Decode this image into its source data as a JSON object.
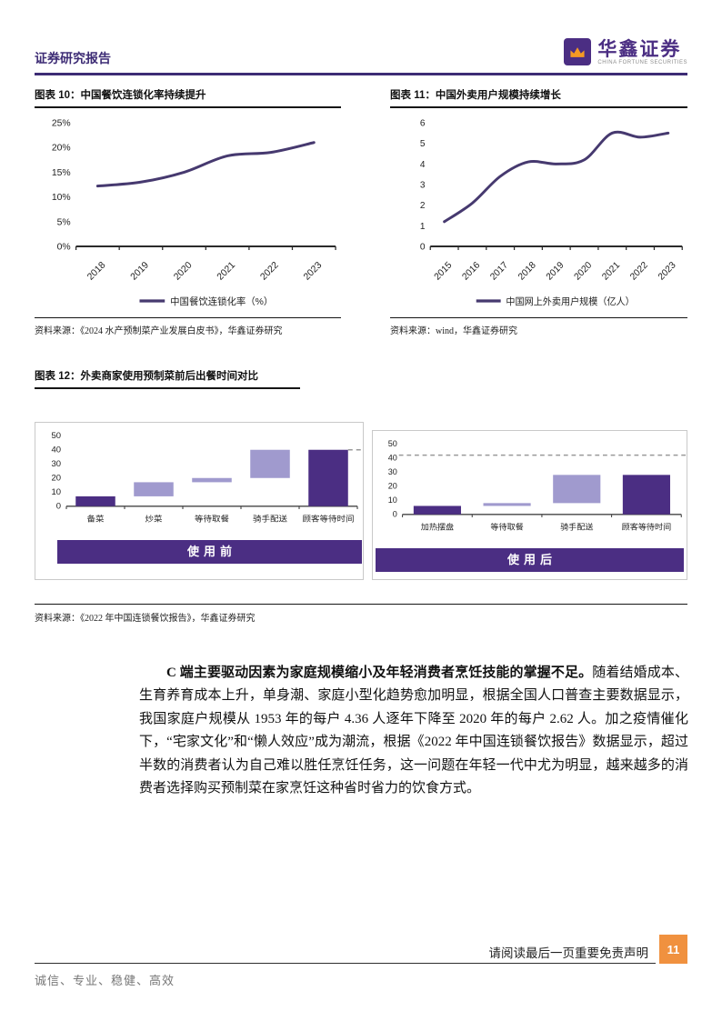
{
  "header": {
    "report_type": "证券研究报告",
    "brand": "华鑫证券",
    "brand_en": "CHINA FORTUNE SECURITIES"
  },
  "colors": {
    "primary_purple": "#4b2e83",
    "light_purple": "#a09ace",
    "line_purple": "#46396f",
    "header_purple": "#3d2c75",
    "accent_orange": "#f0913f",
    "dash_gray": "#9a9a9a"
  },
  "chart_data": [
    {
      "type": "line",
      "title": "图表 10：中国餐饮连锁化率持续提升",
      "x": [
        "2018",
        "2019",
        "2020",
        "2021",
        "2022",
        "2023"
      ],
      "values": [
        12.2,
        13.0,
        15.0,
        18.3,
        19.0,
        21.0
      ],
      "ylim": [
        0,
        25
      ],
      "yticks": [
        "0%",
        "5%",
        "10%",
        "15%",
        "20%",
        "25%"
      ],
      "legend": "中国餐饮连锁化率（%）",
      "legend_position": "bottom",
      "grid": false,
      "source": "资料来源：《2024 水产预制菜产业发展白皮书》，华鑫证券研究"
    },
    {
      "type": "line",
      "title": "图表 11：中国外卖用户规模持续增长",
      "x": [
        "2015",
        "2016",
        "2017",
        "2018",
        "2019",
        "2020",
        "2021",
        "2022",
        "2023"
      ],
      "values": [
        1.2,
        2.1,
        3.4,
        4.1,
        4.0,
        4.2,
        5.5,
        5.3,
        5.5
      ],
      "ylim": [
        0,
        6
      ],
      "yticks": [
        "0",
        "1",
        "2",
        "3",
        "4",
        "5",
        "6"
      ],
      "legend": "中国网上外卖用户规模（亿人）",
      "legend_position": "bottom",
      "grid": false,
      "source": "资料来源：wind，华鑫证券研究"
    },
    {
      "type": "bar",
      "subtype": "waterfall-pair",
      "title": "图表 12：外卖商家使用预制菜前后出餐时间对比",
      "ylim": [
        0,
        50
      ],
      "yticks": [
        "0",
        "10",
        "20",
        "30",
        "40",
        "50"
      ],
      "grid": false,
      "panels": [
        {
          "label": "使用前",
          "categories": [
            "备菜",
            "炒菜",
            "等待取餐",
            "骑手配送",
            "顾客等待时间"
          ],
          "bars": [
            {
              "category": "备菜",
              "start": 0,
              "end": 7,
              "shade": "dark"
            },
            {
              "category": "炒菜",
              "start": 7,
              "end": 17,
              "shade": "light"
            },
            {
              "category": "等待取餐",
              "start": 17,
              "end": 20,
              "shade": "light"
            },
            {
              "category": "骑手配送",
              "start": 20,
              "end": 40,
              "shade": "light"
            },
            {
              "category": "顾客等待时间",
              "start": 0,
              "end": 40,
              "shade": "dark"
            }
          ],
          "dash": {
            "level": 40,
            "span": "from-last-bar"
          }
        },
        {
          "label": "使用后",
          "categories": [
            "加热摆盘",
            "等待取餐",
            "骑手配送",
            "顾客等待时间"
          ],
          "bars": [
            {
              "category": "加热摆盘",
              "start": 0,
              "end": 6,
              "shade": "dark"
            },
            {
              "category": "等待取餐",
              "start": 6,
              "end": 8,
              "shade": "light"
            },
            {
              "category": "骑手配送",
              "start": 8,
              "end": 28,
              "shade": "light"
            },
            {
              "category": "顾客等待时间",
              "start": 0,
              "end": 28,
              "shade": "dark"
            }
          ],
          "dash": {
            "level": 42,
            "span": "full"
          }
        }
      ],
      "source": "资料来源：《2022 年中国连锁餐饮报告》，华鑫证券研究"
    }
  ],
  "paragraph": {
    "lead_bold": "C 端主要驱动因素为家庭规模缩小及年轻消费者烹饪技能的掌握不足。",
    "body": "随着结婚成本、生育养育成本上升，单身潮、家庭小型化趋势愈加明显，根据全国人口普查主要数据显示，我国家庭户规模从 1953 年的每户 4.36 人逐年下降至 2020 年的每户 2.62 人。加之疫情催化下，“宅家文化”和“懒人效应”成为潮流，根据《2022 年中国连锁餐饮报告》数据显示，超过半数的消费者认为自己难以胜任烹饪任务，这一问题在年轻一代中尤为明显，越来越多的消费者选择购买预制菜在家烹饪这种省时省力的饮食方式。"
  },
  "footer": {
    "disclaimer": "请阅读最后一页重要免责声明",
    "page_number": "11",
    "motto": "诚信、专业、稳健、高效"
  }
}
